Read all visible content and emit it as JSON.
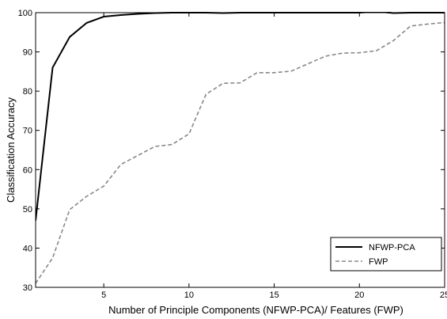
{
  "chart_data": {
    "type": "line",
    "title": "",
    "xlabel": "Number of Principle Components (NFWP-PCA)/ Features (FWP)",
    "ylabel": "Classification Accuracy",
    "xlim": [
      1,
      25
    ],
    "ylim": [
      30,
      100
    ],
    "xticks": [
      5,
      10,
      15,
      20,
      25
    ],
    "yticks": [
      30,
      40,
      50,
      60,
      70,
      80,
      90,
      100
    ],
    "grid": false,
    "legend_position": "bottom-right",
    "series": [
      {
        "name": "NFWP-PCA",
        "color": "#000000",
        "dash": "solid",
        "x": [
          1,
          2,
          3,
          4,
          5,
          6,
          7,
          8,
          9,
          10,
          11,
          12,
          13,
          14,
          15,
          16,
          17,
          18,
          19,
          20,
          21,
          22,
          23,
          24,
          25
        ],
        "y": [
          47,
          86,
          93.8,
          97.4,
          99,
          99.4,
          99.7,
          99.9,
          100,
          100,
          100,
          99.9,
          100,
          100,
          100,
          100,
          100,
          100,
          100,
          100,
          100.3,
          99.9,
          100,
          100,
          100
        ]
      },
      {
        "name": "FWP",
        "color": "#888888",
        "dash": "dashed",
        "x": [
          1,
          2,
          3,
          4,
          5,
          6,
          7,
          8,
          9,
          10,
          11,
          12,
          13,
          14,
          15,
          16,
          17,
          18,
          19,
          20,
          21,
          22,
          23,
          24,
          25
        ],
        "y": [
          31,
          37.5,
          49.8,
          53.2,
          55.8,
          61.3,
          63.6,
          65.9,
          66.4,
          69.1,
          79.2,
          82,
          82.1,
          84.7,
          84.7,
          85.1,
          87,
          88.9,
          89.7,
          89.8,
          90.3,
          92.9,
          96.6,
          97.1,
          97.5
        ]
      }
    ]
  }
}
